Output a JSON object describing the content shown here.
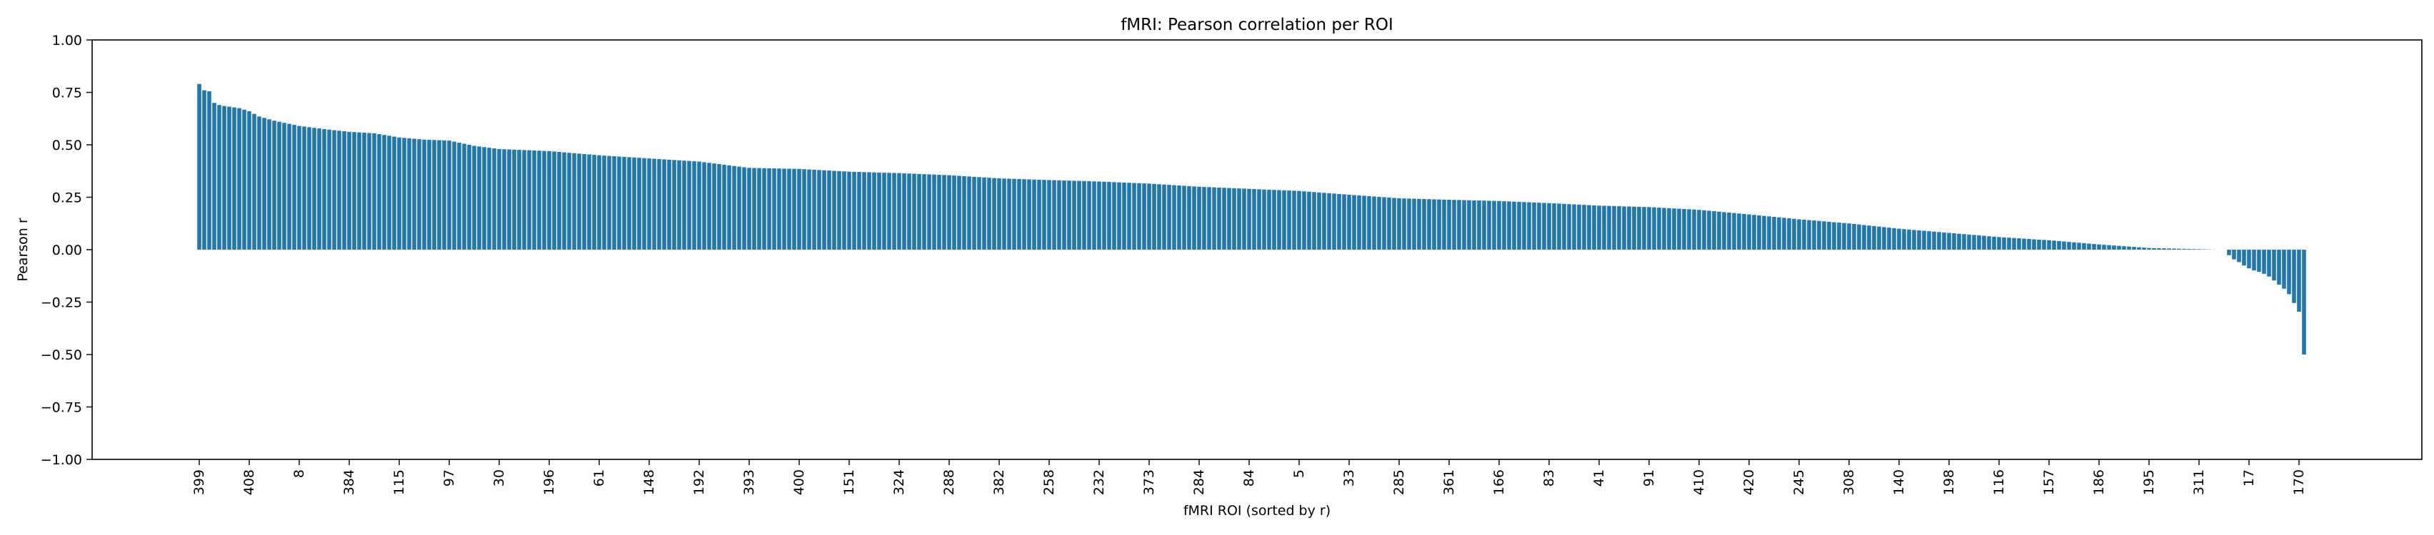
{
  "chart_data": {
    "type": "bar",
    "title": "fMRI: Pearson correlation per ROI",
    "xlabel": "fMRI ROI (sorted by r)",
    "ylabel": "Pearson r",
    "ylim": [
      -1.0,
      1.0
    ],
    "yticks": [
      -1.0,
      -0.75,
      -0.5,
      -0.25,
      0.0,
      0.25,
      0.5,
      0.75,
      1.0
    ],
    "ytick_labels": [
      "−1.00",
      "−0.75",
      "−0.50",
      "−0.25",
      "0.00",
      "0.25",
      "0.50",
      "0.75",
      "1.00"
    ],
    "bar_color": "#1f77b4",
    "grid": false,
    "legend": "none",
    "n_rois": 422,
    "xtick_labels": [
      "399",
      "408",
      "8",
      "384",
      "115",
      "97",
      "30",
      "196",
      "61",
      "148",
      "192",
      "393",
      "400",
      "151",
      "324",
      "288",
      "382",
      "258",
      "232",
      "373",
      "284",
      "84",
      "5",
      "33",
      "285",
      "361",
      "166",
      "83",
      "41",
      "91",
      "410",
      "420",
      "245",
      "308",
      "140",
      "198",
      "116",
      "157",
      "186",
      "195",
      "311",
      "17",
      "170"
    ],
    "xtick_index_step": 10,
    "positive_profile": [
      [
        0,
        0.79
      ],
      [
        1,
        0.76
      ],
      [
        2,
        0.755
      ],
      [
        3,
        0.7
      ],
      [
        4,
        0.69
      ],
      [
        5,
        0.685
      ],
      [
        8,
        0.675
      ],
      [
        10,
        0.66
      ],
      [
        12,
        0.635
      ],
      [
        15,
        0.615
      ],
      [
        20,
        0.59
      ],
      [
        25,
        0.575
      ],
      [
        30,
        0.562
      ],
      [
        35,
        0.555
      ],
      [
        40,
        0.535
      ],
      [
        45,
        0.525
      ],
      [
        50,
        0.52
      ],
      [
        55,
        0.495
      ],
      [
        60,
        0.48
      ],
      [
        70,
        0.47
      ],
      [
        80,
        0.45
      ],
      [
        90,
        0.435
      ],
      [
        100,
        0.42
      ],
      [
        110,
        0.39
      ],
      [
        120,
        0.385
      ],
      [
        130,
        0.372
      ],
      [
        140,
        0.365
      ],
      [
        150,
        0.355
      ],
      [
        160,
        0.34
      ],
      [
        170,
        0.332
      ],
      [
        180,
        0.325
      ],
      [
        190,
        0.315
      ],
      [
        200,
        0.3
      ],
      [
        210,
        0.29
      ],
      [
        220,
        0.28
      ],
      [
        230,
        0.262
      ],
      [
        240,
        0.245
      ],
      [
        250,
        0.238
      ],
      [
        260,
        0.232
      ],
      [
        270,
        0.222
      ],
      [
        280,
        0.21
      ],
      [
        290,
        0.203
      ],
      [
        300,
        0.19
      ],
      [
        310,
        0.168
      ],
      [
        320,
        0.145
      ],
      [
        330,
        0.125
      ],
      [
        340,
        0.1
      ],
      [
        350,
        0.08
      ],
      [
        360,
        0.06
      ],
      [
        370,
        0.045
      ],
      [
        380,
        0.025
      ],
      [
        390,
        0.008
      ],
      [
        404,
        0.0
      ]
    ],
    "negative_profile": [
      [
        0,
        0.0
      ],
      [
        10,
        -0.04
      ],
      [
        20,
        -0.06
      ],
      [
        30,
        -0.085
      ],
      [
        40,
        -0.1
      ],
      [
        50,
        -0.11
      ],
      [
        60,
        -0.13
      ],
      [
        70,
        -0.16
      ],
      [
        80,
        -0.19
      ],
      [
        85,
        -0.21
      ],
      [
        90,
        -0.245
      ],
      [
        95,
        -0.27
      ],
      [
        99,
        -0.3
      ],
      [
        101,
        -0.34
      ],
      [
        102,
        -0.4
      ],
      [
        103,
        -0.43
      ],
      [
        104,
        -0.46
      ],
      [
        105,
        -0.5
      ]
    ],
    "n_positive": 405,
    "n_zero": 0,
    "n_negative": 17
  }
}
